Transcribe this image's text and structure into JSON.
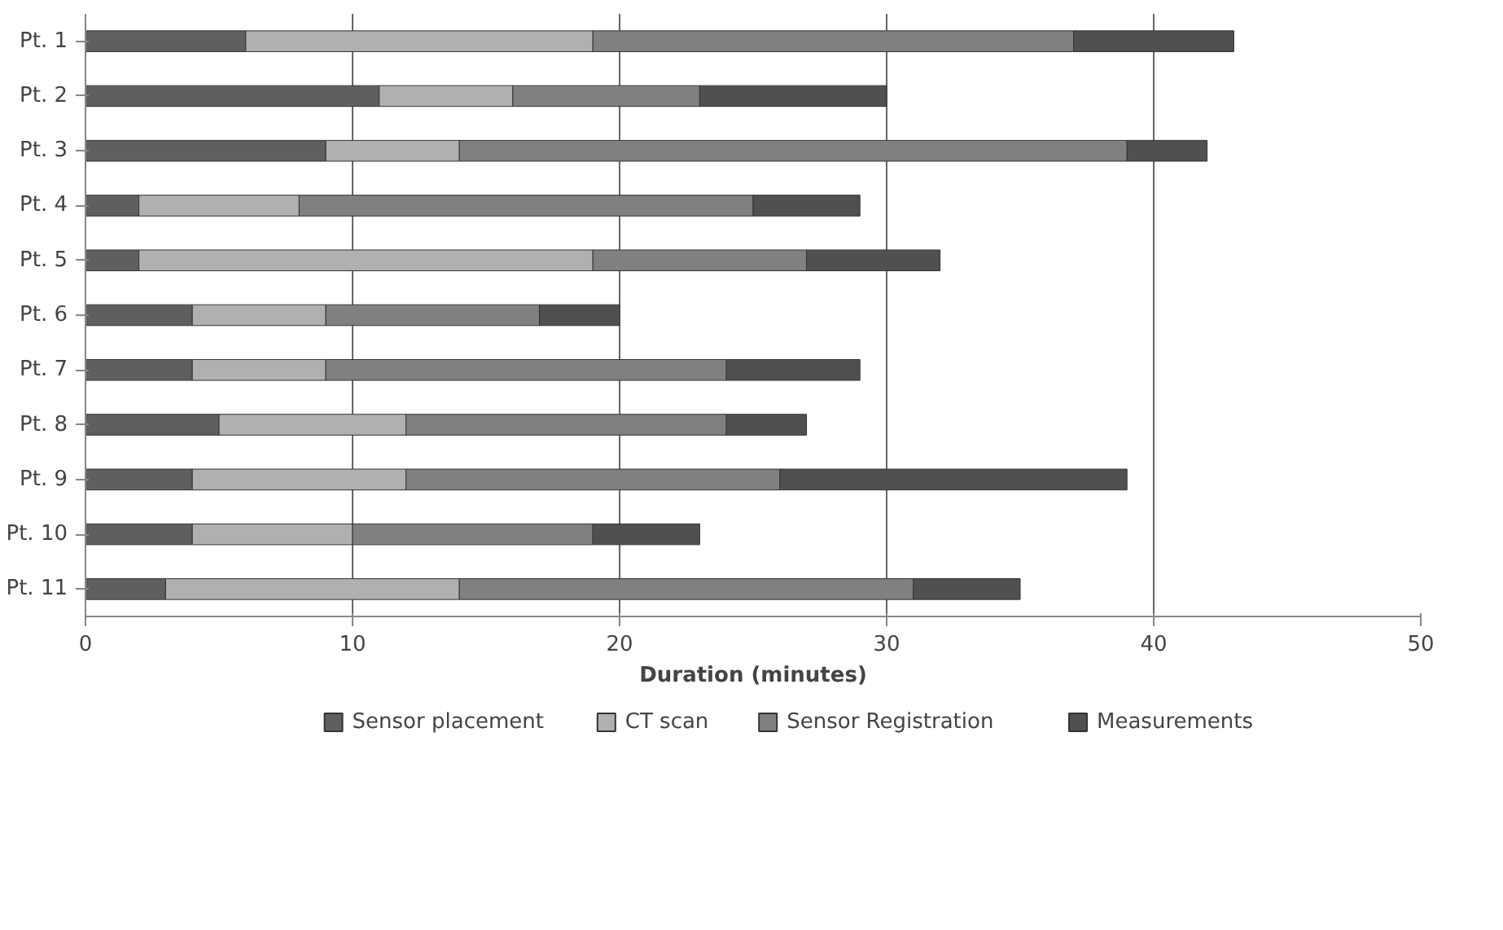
{
  "chart_data": {
    "type": "bar",
    "orientation": "horizontal",
    "stacked": true,
    "categories": [
      "Pt. 1",
      "Pt. 2",
      "Pt. 3",
      "Pt. 4",
      "Pt. 5",
      "Pt. 6",
      "Pt. 7",
      "Pt. 8",
      "Pt. 9",
      "Pt. 10",
      "Pt. 11"
    ],
    "series": [
      {
        "name": "Sensor placement",
        "color": "#5f5f5f",
        "values": [
          6,
          11,
          9,
          2,
          2,
          4,
          4,
          5,
          4,
          4,
          3
        ]
      },
      {
        "name": "CT scan",
        "color": "#b0b0b0",
        "values": [
          13,
          5,
          5,
          6,
          17,
          5,
          5,
          7,
          8,
          6,
          11
        ]
      },
      {
        "name": "Sensor Registration",
        "color": "#808080",
        "values": [
          18,
          7,
          25,
          17,
          8,
          8,
          15,
          12,
          14,
          9,
          17
        ]
      },
      {
        "name": "Measurements",
        "color": "#505050",
        "values": [
          6,
          7,
          3,
          4,
          5,
          3,
          5,
          3,
          13,
          4,
          4
        ]
      }
    ],
    "xlabel": "Duration (minutes)",
    "xlim": [
      0,
      50
    ],
    "xticks": [
      0,
      10,
      20,
      30,
      40,
      50
    ],
    "grid": "x",
    "legend": "bottom"
  }
}
